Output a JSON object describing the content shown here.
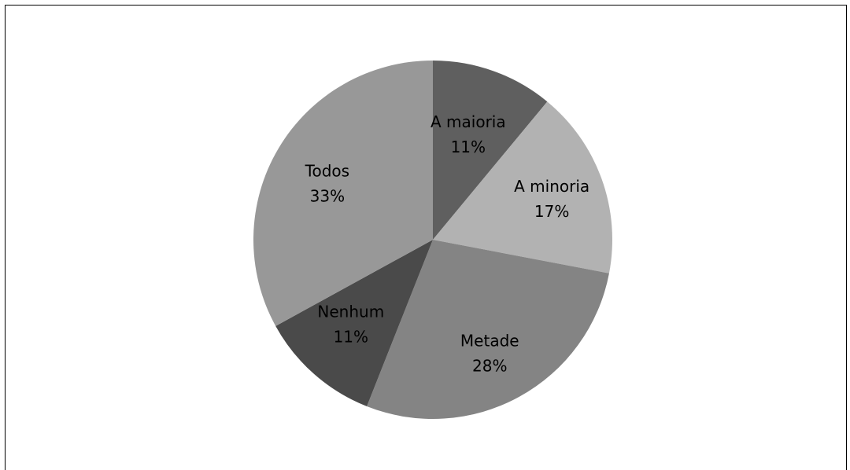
{
  "chart_data": {
    "type": "pie",
    "slices": [
      {
        "label": "A maioria",
        "value": 11,
        "value_label": "11%",
        "color": "#5f5f5f"
      },
      {
        "label": "A minoria",
        "value": 17,
        "value_label": "17%",
        "color": "#b2b2b2"
      },
      {
        "label": "Metade",
        "value": 28,
        "value_label": "28%",
        "color": "#848484"
      },
      {
        "label": "Nenhum",
        "value": 11,
        "value_label": "11%",
        "color": "#4a4a4a"
      },
      {
        "label": "Todos",
        "value": 33,
        "value_label": "33%",
        "color": "#989898"
      }
    ],
    "start_angle_deg": 0,
    "direction": "clockwise",
    "legend": "none",
    "data_labels": "inside"
  }
}
